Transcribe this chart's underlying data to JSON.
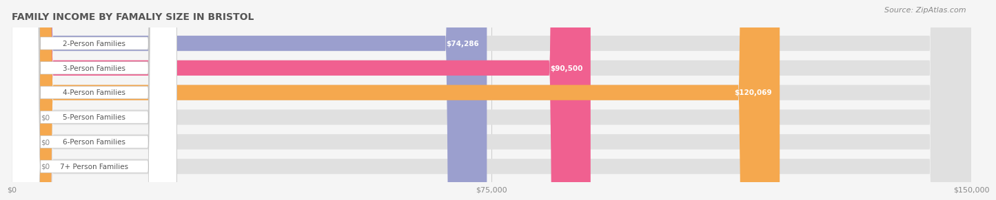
{
  "title": "FAMILY INCOME BY FAMALIY SIZE IN BRISTOL",
  "source": "Source: ZipAtlas.com",
  "categories": [
    "2-Person Families",
    "3-Person Families",
    "4-Person Families",
    "5-Person Families",
    "6-Person Families",
    "7+ Person Families"
  ],
  "values": [
    74286,
    90500,
    120069,
    0,
    0,
    0
  ],
  "bar_colors": [
    "#9b9fce",
    "#f06090",
    "#f5a84e",
    "#f0a8a0",
    "#a8b8e0",
    "#c8a8d8"
  ],
  "label_colors": [
    "white",
    "white",
    "white",
    "#888888",
    "#888888",
    "#888888"
  ],
  "label_texts": [
    "$74,286",
    "$90,500",
    "$120,069",
    "$0",
    "$0",
    "$0"
  ],
  "xlim": [
    0,
    150000
  ],
  "xticks": [
    0,
    75000,
    150000
  ],
  "xticklabels": [
    "$0",
    "$75,000",
    "$150,000"
  ],
  "background_color": "#f5f5f5",
  "bar_bg_color": "#e0e0e0",
  "title_fontsize": 10,
  "source_fontsize": 8,
  "label_fontsize": 7.5,
  "tick_fontsize": 8,
  "cat_fontsize": 7.5,
  "bar_height": 0.62,
  "figsize": [
    14.06,
    3.05
  ]
}
